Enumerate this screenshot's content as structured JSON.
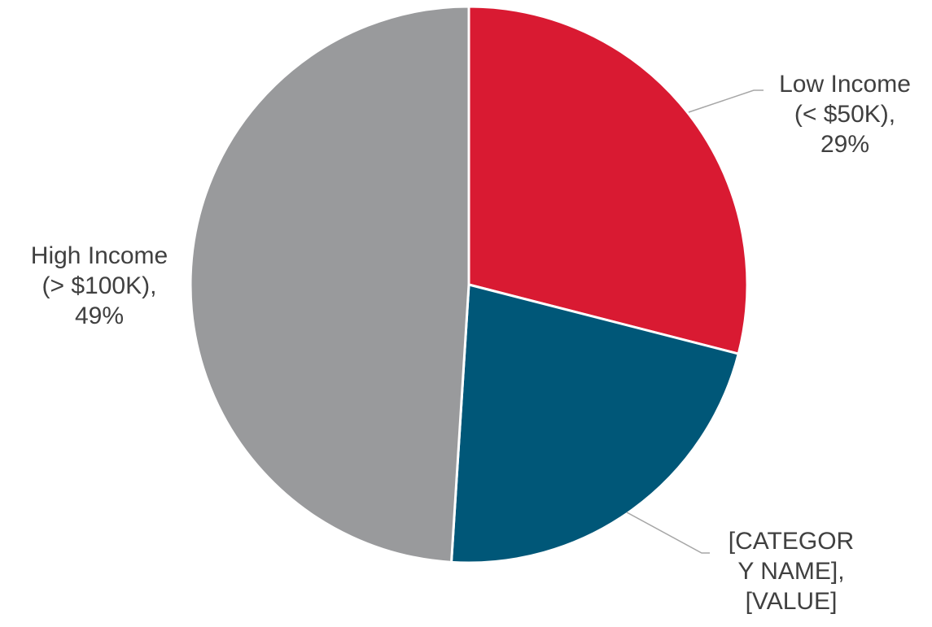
{
  "chart_data": {
    "type": "pie",
    "start_angle_deg": 0,
    "direction": "clockwise",
    "slices": [
      {
        "label_lines": [
          "Low Income",
          "(< $50K),",
          "29%"
        ],
        "value": 29,
        "color": "#d91a32"
      },
      {
        "label_lines": [
          "[CATEGOR",
          "Y NAME],",
          "[VALUE]"
        ],
        "value": 22,
        "color": "#005778"
      },
      {
        "label_lines": [
          "High Income",
          "(> $100K),",
          "49%"
        ],
        "value": 49,
        "color": "#999a9c"
      }
    ],
    "slice_border_color": "#ffffff",
    "leader_line_color": "#a6a6a6",
    "label_color": "#404040",
    "legend": "none",
    "title": ""
  }
}
